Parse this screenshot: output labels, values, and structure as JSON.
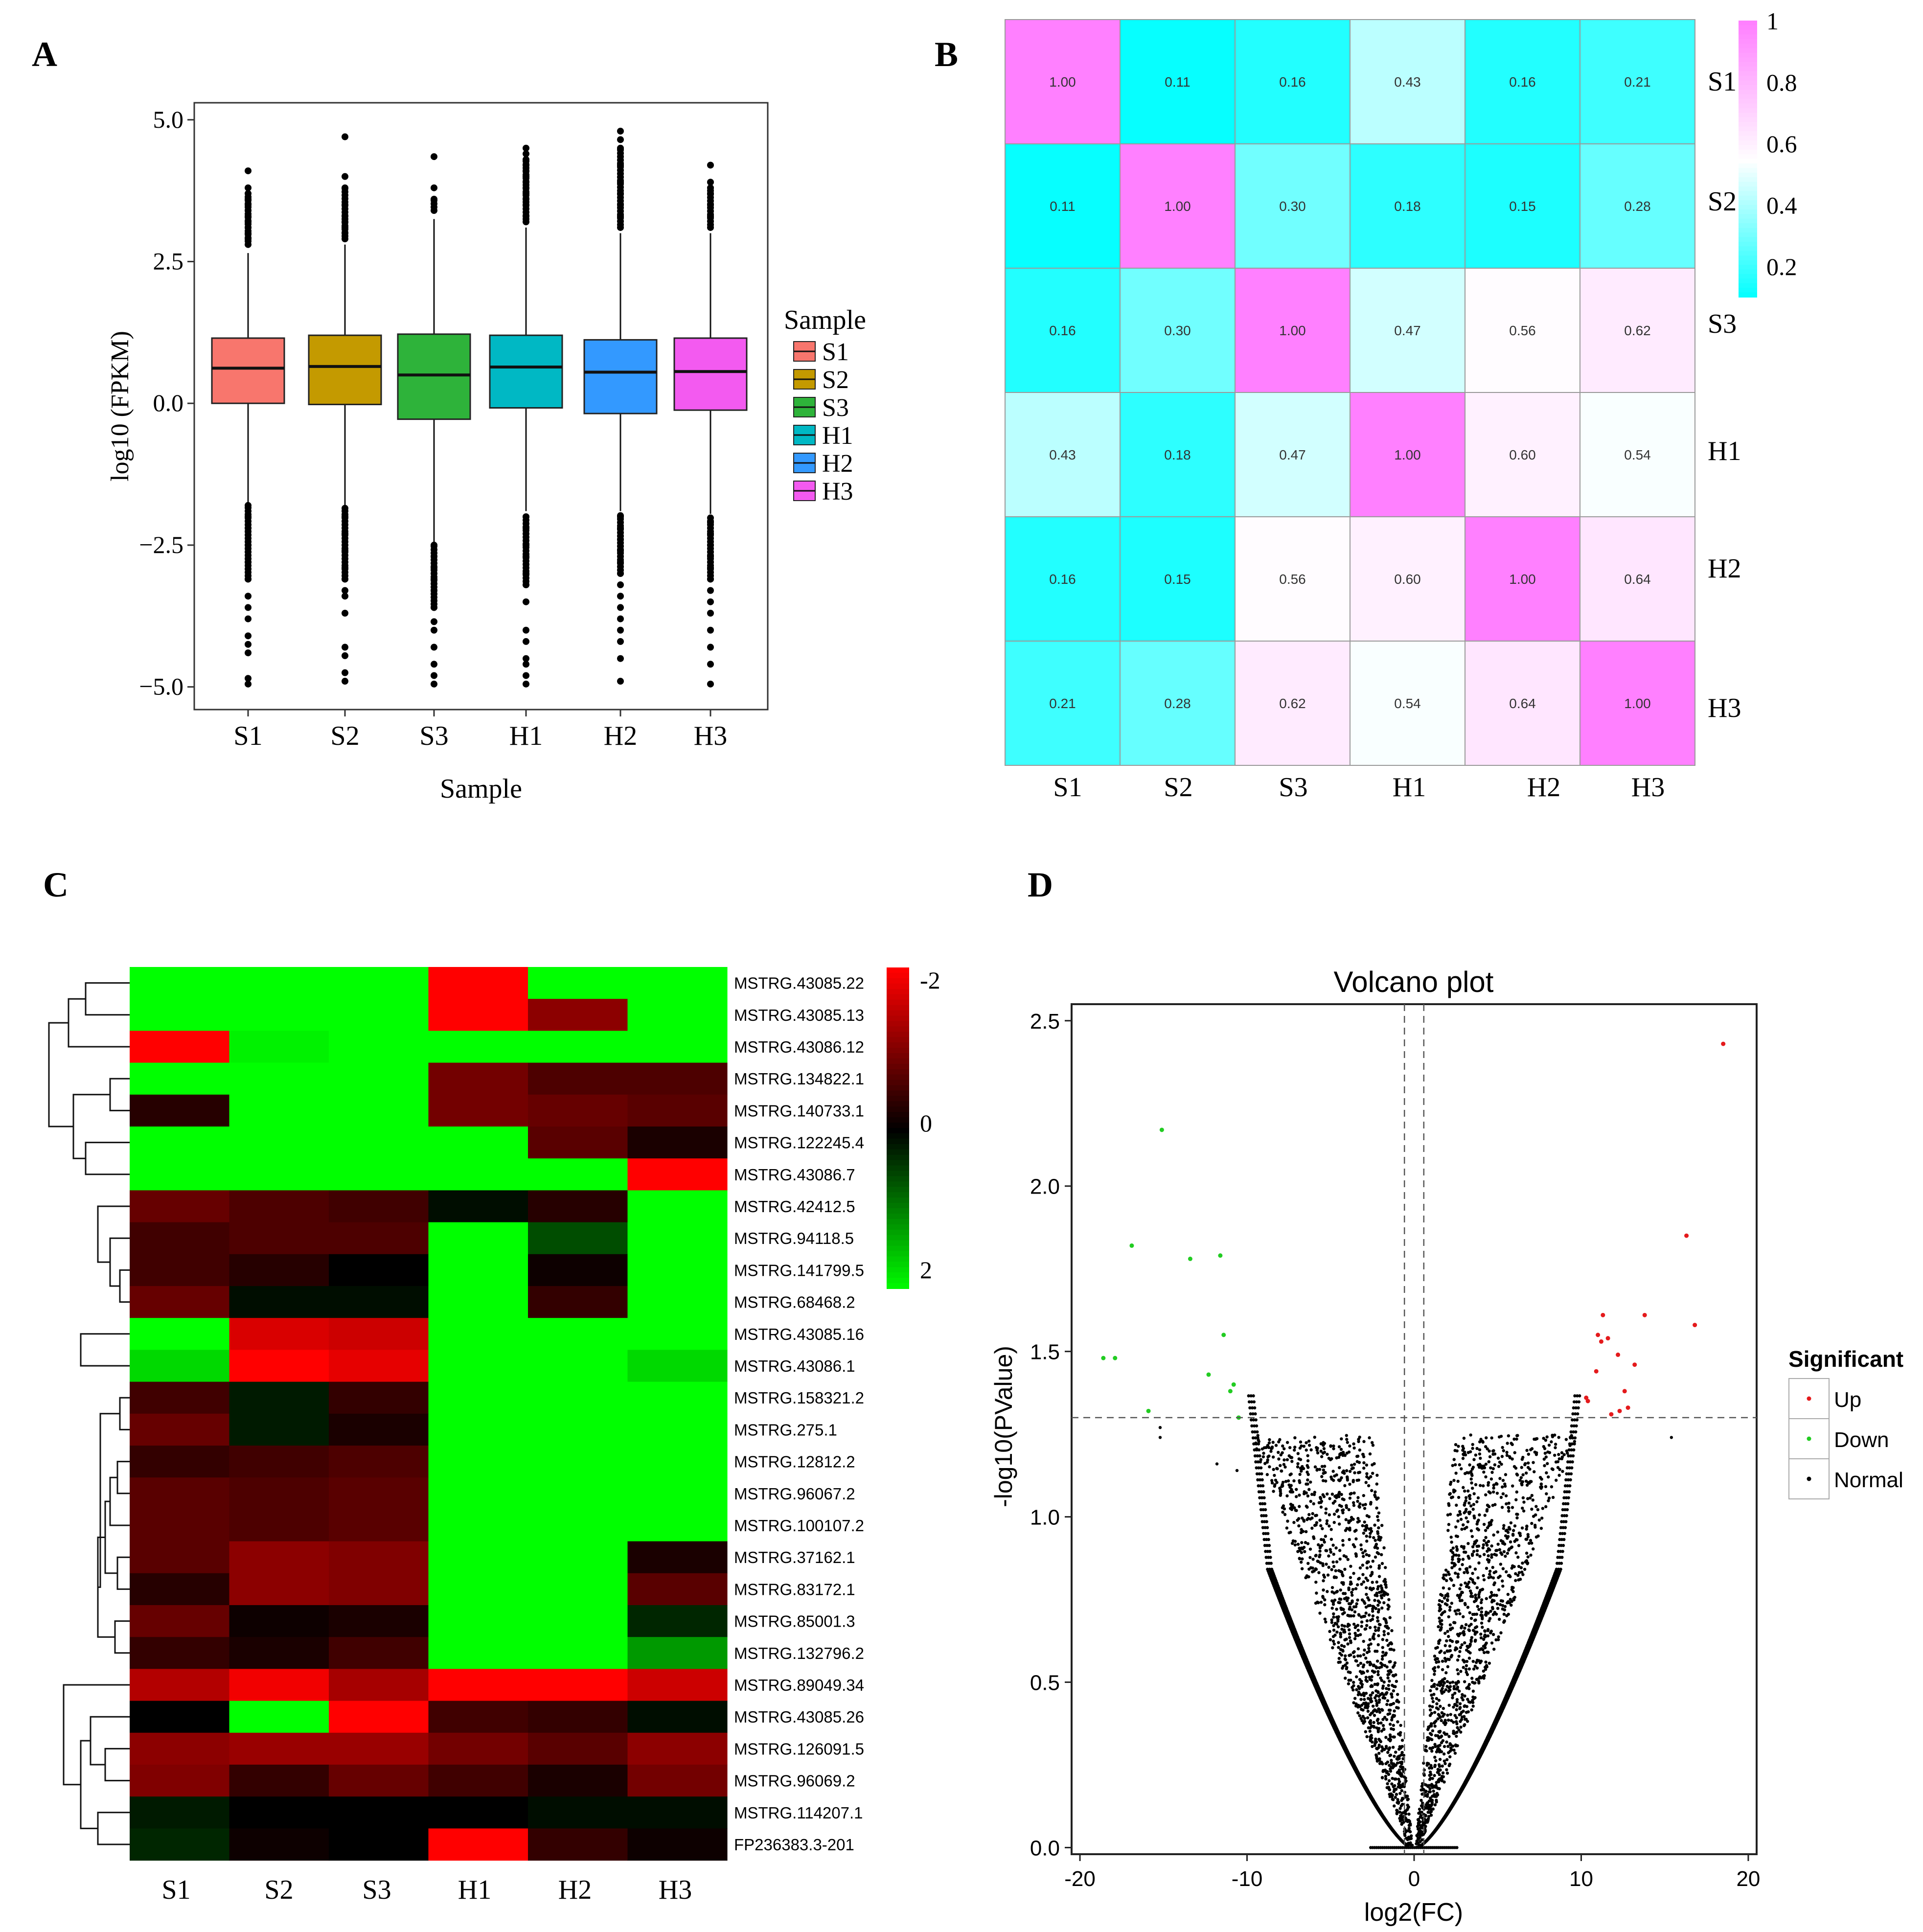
{
  "colors": {
    "box_S1": "#F8766D",
    "box_S2": "#C49A00",
    "box_S3": "#2EB33A",
    "box_H1": "#00B8C4",
    "box_H2": "#3399FF",
    "box_H3": "#F35AF0",
    "corr_low": "#00FFFF",
    "corr_mid": "#FFFFFF",
    "corr_high": "#FF80FF",
    "heat_low": "#00FF00",
    "heat_mid": "#000000",
    "heat_high": "#FF0000",
    "volcano_up": "#E41A1C",
    "volcano_down": "#22CC22",
    "volcano_normal": "#000000"
  },
  "chart_data": [
    {
      "panel": "A",
      "type": "box",
      "title": "",
      "xlabel": "Sample",
      "ylabel": "log10 (FPKM)",
      "ylim": [
        -5.4,
        5.3
      ],
      "yticks": [
        5.0,
        2.5,
        0.0,
        -2.5,
        -5.0
      ],
      "ytick_labels": [
        "5.0",
        "2.5",
        "0.0",
        "−2.5",
        "−5.0"
      ],
      "legend_title": "Sample",
      "legend_position": "right",
      "categories": [
        "S1",
        "S2",
        "S3",
        "H1",
        "H2",
        "H3"
      ],
      "boxes": [
        {
          "name": "S1",
          "q1": 0.0,
          "median": 0.62,
          "q3": 1.15,
          "whisker_low": -1.75,
          "whisker_high": 2.65,
          "out_high": [
            2.9,
            3.0,
            3.1,
            3.2,
            3.3,
            3.4,
            3.5,
            3.6,
            3.7,
            3.8,
            4.1
          ],
          "out_low": [
            -1.8,
            -2.0,
            -2.2,
            -2.5,
            -2.8,
            -3.1,
            -3.4,
            -3.6,
            -3.8,
            -4.1,
            -4.25,
            -4.4,
            -4.85,
            -4.95
          ]
        },
        {
          "name": "S2",
          "q1": -0.02,
          "median": 0.65,
          "q3": 1.2,
          "whisker_low": -1.8,
          "whisker_high": 2.8,
          "out_high": [
            2.9,
            3.0,
            3.1,
            3.2,
            3.3,
            3.5,
            3.8,
            4.0,
            4.7
          ],
          "out_low": [
            -1.85,
            -2.0,
            -2.3,
            -2.6,
            -2.9,
            -3.1,
            -3.3,
            -3.4,
            -3.7,
            -4.3,
            -4.45,
            -4.75,
            -4.9
          ]
        },
        {
          "name": "S3",
          "q1": -0.28,
          "median": 0.5,
          "q3": 1.22,
          "whisker_low": -2.45,
          "whisker_high": 3.25,
          "out_high": [
            3.6,
            3.8,
            4.35
          ],
          "out_low": [
            -2.5,
            -2.7,
            -2.9,
            -3.1,
            -3.3,
            -3.6,
            -3.85,
            -4.0,
            -4.3,
            -4.6,
            -4.8,
            -4.95
          ]
        },
        {
          "name": "H1",
          "q1": -0.08,
          "median": 0.64,
          "q3": 1.2,
          "whisker_low": -1.9,
          "whisker_high": 3.1,
          "out_high": [
            3.2,
            3.3,
            3.5,
            3.6,
            3.7,
            3.8,
            3.9,
            4.0,
            4.1,
            4.2,
            4.3,
            4.4,
            4.5
          ],
          "out_low": [
            -2.0,
            -2.2,
            -2.5,
            -2.7,
            -3.0,
            -3.2,
            -3.5,
            -4.0,
            -4.2,
            -4.5,
            -4.6,
            -4.8,
            -4.95
          ]
        },
        {
          "name": "H2",
          "q1": -0.18,
          "median": 0.55,
          "q3": 1.12,
          "whisker_low": -1.9,
          "whisker_high": 3.0,
          "out_high": [
            3.1,
            3.3,
            3.5,
            3.7,
            3.9,
            4.2,
            4.5,
            4.65,
            4.8
          ],
          "out_low": [
            -2.0,
            -2.2,
            -2.4,
            -2.6,
            -2.8,
            -3.0,
            -3.2,
            -3.4,
            -3.6,
            -3.8,
            -4.0,
            -4.2,
            -4.5,
            -4.9
          ]
        },
        {
          "name": "H3",
          "q1": -0.12,
          "median": 0.56,
          "q3": 1.15,
          "whisker_low": -1.95,
          "whisker_high": 3.0,
          "out_high": [
            3.1,
            3.3,
            3.5,
            3.7,
            3.8,
            3.9,
            4.2
          ],
          "out_low": [
            -2.1,
            -2.3,
            -2.5,
            -2.7,
            -2.9,
            -3.1,
            -3.3,
            -3.5,
            -3.7,
            -4.0,
            -4.3,
            -4.6,
            -4.95
          ]
        }
      ]
    },
    {
      "panel": "B",
      "type": "heatmap",
      "title": "",
      "rows": [
        "S1",
        "S2",
        "S3",
        "H1",
        "H2",
        "H3"
      ],
      "cols": [
        "S1",
        "S2",
        "S3",
        "H1",
        "H2",
        "H3"
      ],
      "values": [
        [
          1.0,
          0.11,
          0.16,
          0.43,
          0.16,
          0.21
        ],
        [
          0.11,
          1.0,
          0.3,
          0.18,
          0.15,
          0.28
        ],
        [
          0.16,
          0.3,
          1.0,
          0.47,
          0.56,
          0.62
        ],
        [
          0.43,
          0.18,
          0.47,
          1.0,
          0.6,
          0.54
        ],
        [
          0.16,
          0.15,
          0.56,
          0.6,
          1.0,
          0.64
        ],
        [
          0.21,
          0.28,
          0.62,
          0.54,
          0.64,
          1.0
        ]
      ],
      "value_labels": [
        [
          "1.00",
          "0.11",
          "0.16",
          "0.43",
          "0.16",
          "0.21"
        ],
        [
          "0.11",
          "1.00",
          "0.30",
          "0.18",
          "0.15",
          "0.28"
        ],
        [
          "0.16",
          "0.30",
          "1.00",
          "0.47",
          "0.56",
          "0.62"
        ],
        [
          "0.43",
          "0.18",
          "0.47",
          "1.00",
          "0.60",
          "0.54"
        ],
        [
          "0.16",
          "0.15",
          "0.56",
          "0.60",
          "1.00",
          "0.64"
        ],
        [
          "0.21",
          "0.28",
          "0.62",
          "0.54",
          "0.64",
          "1.00"
        ]
      ],
      "scale": {
        "min": 0.1,
        "max": 1.0,
        "ticks": [
          1,
          0.8,
          0.6,
          0.4,
          0.2
        ],
        "tick_labels": [
          "1",
          "0.8",
          "0.6",
          "0.4",
          "0.2"
        ]
      }
    },
    {
      "panel": "C",
      "type": "heatmap",
      "title": "",
      "cols": [
        "S1",
        "S2",
        "S3",
        "H1",
        "H2",
        "H3"
      ],
      "rows": [
        "MSTRG.43085.22",
        "MSTRG.43085.13",
        "MSTRG.43086.12",
        "MSTRG.134822.1",
        "MSTRG.140733.1",
        "MSTRG.122245.4",
        "MSTRG.43086.7",
        "MSTRG.42412.5",
        "MSTRG.94118.5",
        "MSTRG.141799.5",
        "MSTRG.68468.2",
        "MSTRG.43085.16",
        "MSTRG.43086.1",
        "MSTRG.158321.2",
        "MSTRG.275.1",
        "MSTRG.12812.2",
        "MSTRG.96067.2",
        "MSTRG.100107.2",
        "MSTRG.37162.1",
        "MSTRG.83172.1",
        "MSTRG.85001.3",
        "MSTRG.132796.2",
        "MSTRG.89049.34",
        "MSTRG.43085.26",
        "MSTRG.126091.5",
        "MSTRG.96069.2",
        "MSTRG.114207.1",
        "FP236383.3-201"
      ],
      "values": [
        [
          2,
          2,
          2,
          -2,
          2,
          2
        ],
        [
          2,
          2,
          2,
          -2,
          -1.1,
          2
        ],
        [
          -2,
          1.9,
          2,
          2,
          2,
          2
        ],
        [
          2,
          2,
          2,
          -0.9,
          -0.6,
          -0.6
        ],
        [
          -0.3,
          2,
          2,
          -0.9,
          -0.8,
          -0.7
        ],
        [
          2,
          2,
          2,
          2,
          -0.7,
          -0.2
        ],
        [
          2,
          2,
          2,
          2,
          2,
          -2
        ],
        [
          -0.8,
          -0.6,
          -0.5,
          0.1,
          -0.3,
          2
        ],
        [
          -0.5,
          -0.6,
          -0.6,
          2,
          0.6,
          2
        ],
        [
          -0.5,
          -0.3,
          0,
          2,
          -0.1,
          2
        ],
        [
          -0.8,
          0.1,
          0.1,
          2,
          -0.4,
          2
        ],
        [
          2,
          -1.7,
          -1.6,
          2,
          2,
          2
        ],
        [
          1.7,
          -2,
          -1.8,
          2,
          2,
          1.7
        ],
        [
          -0.5,
          0.2,
          -0.4,
          2,
          2,
          2
        ],
        [
          -0.8,
          0.2,
          -0.2,
          2,
          2,
          2
        ],
        [
          -0.4,
          -0.5,
          -0.6,
          2,
          2,
          2
        ],
        [
          -0.7,
          -0.6,
          -0.7,
          2,
          2,
          2
        ],
        [
          -0.7,
          -0.6,
          -0.7,
          2,
          2,
          2
        ],
        [
          -0.7,
          -1.1,
          -1.0,
          2,
          2,
          -0.2
        ],
        [
          -0.3,
          -1.1,
          -1.0,
          2,
          2,
          -0.7
        ],
        [
          -0.8,
          -0.1,
          -0.2,
          2,
          2,
          0.3
        ],
        [
          -0.4,
          -0.2,
          -0.5,
          2,
          2,
          1.2
        ],
        [
          -1.4,
          -1.9,
          -1.3,
          -2,
          -2,
          -1.6
        ],
        [
          0,
          2,
          -2,
          -0.5,
          -0.4,
          0.1
        ],
        [
          -1.1,
          -1.2,
          -1.2,
          -0.9,
          -0.7,
          -1.1
        ],
        [
          -1.0,
          -0.4,
          -0.8,
          -0.5,
          -0.2,
          -0.9
        ],
        [
          0.2,
          0,
          0,
          0,
          0.1,
          0.1
        ],
        [
          0.3,
          -0.1,
          0,
          -2,
          -0.4,
          -0.1
        ]
      ],
      "scale": {
        "min": -2,
        "max": 2,
        "tick_labels": [
          "-2",
          "0",
          "2"
        ]
      }
    },
    {
      "panel": "D",
      "type": "scatter",
      "title": "Volcano plot",
      "xlabel": "log2(FC)",
      "ylabel": "-log10(PValue)",
      "xlim": [
        -20.5,
        20.5
      ],
      "ylim": [
        -0.02,
        2.55
      ],
      "xticks": [
        -20,
        -10,
        0,
        10,
        20
      ],
      "xtick_labels": [
        "-20",
        "-10",
        "0",
        "10",
        "20"
      ],
      "yticks": [
        0.0,
        0.5,
        1.0,
        1.5,
        2.0,
        2.5
      ],
      "ytick_labels": [
        "0.0",
        "0.5",
        "1.0",
        "1.5",
        "2.0",
        "2.5"
      ],
      "threshold_p": 1.3,
      "threshold_fc": [
        -0.58,
        0.58
      ],
      "legend_title": "Significant",
      "legend_position": "right",
      "legend": [
        "Up",
        "Down",
        "Normal"
      ],
      "series": [
        {
          "name": "Up",
          "points": [
            [
              18.5,
              2.43
            ],
            [
              16.3,
              1.85
            ],
            [
              16.8,
              1.58
            ],
            [
              13.8,
              1.61
            ],
            [
              11.3,
              1.61
            ],
            [
              11.0,
              1.55
            ],
            [
              11.2,
              1.53
            ],
            [
              11.6,
              1.54
            ],
            [
              12.2,
              1.49
            ],
            [
              13.2,
              1.46
            ],
            [
              10.9,
              1.44
            ],
            [
              12.6,
              1.38
            ],
            [
              10.4,
              1.35
            ],
            [
              12.3,
              1.32
            ],
            [
              12.8,
              1.33
            ],
            [
              11.8,
              1.31
            ],
            [
              10.3,
              1.36
            ]
          ]
        },
        {
          "name": "Down",
          "points": [
            [
              -15.1,
              2.17
            ],
            [
              -16.9,
              1.82
            ],
            [
              -13.4,
              1.78
            ],
            [
              -11.6,
              1.79
            ],
            [
              -11.4,
              1.55
            ],
            [
              -18.6,
              1.48
            ],
            [
              -17.9,
              1.48
            ],
            [
              -12.3,
              1.43
            ],
            [
              -10.8,
              1.4
            ],
            [
              -11.0,
              1.38
            ],
            [
              -15.9,
              1.32
            ],
            [
              -10.5,
              1.3
            ]
          ]
        },
        {
          "name": "Normal",
          "points": "dense V-shaped cloud; outlier points",
          "outliers": [
            [
              -15.2,
              1.24
            ],
            [
              -15.2,
              1.27
            ],
            [
              15.4,
              1.24
            ],
            [
              -11.8,
              1.16
            ],
            [
              -10.6,
              1.14
            ]
          ]
        }
      ]
    }
  ],
  "panels": {
    "A": {
      "letter": "A"
    },
    "B": {
      "letter": "B"
    },
    "C": {
      "letter": "C"
    },
    "D": {
      "letter": "D"
    }
  }
}
